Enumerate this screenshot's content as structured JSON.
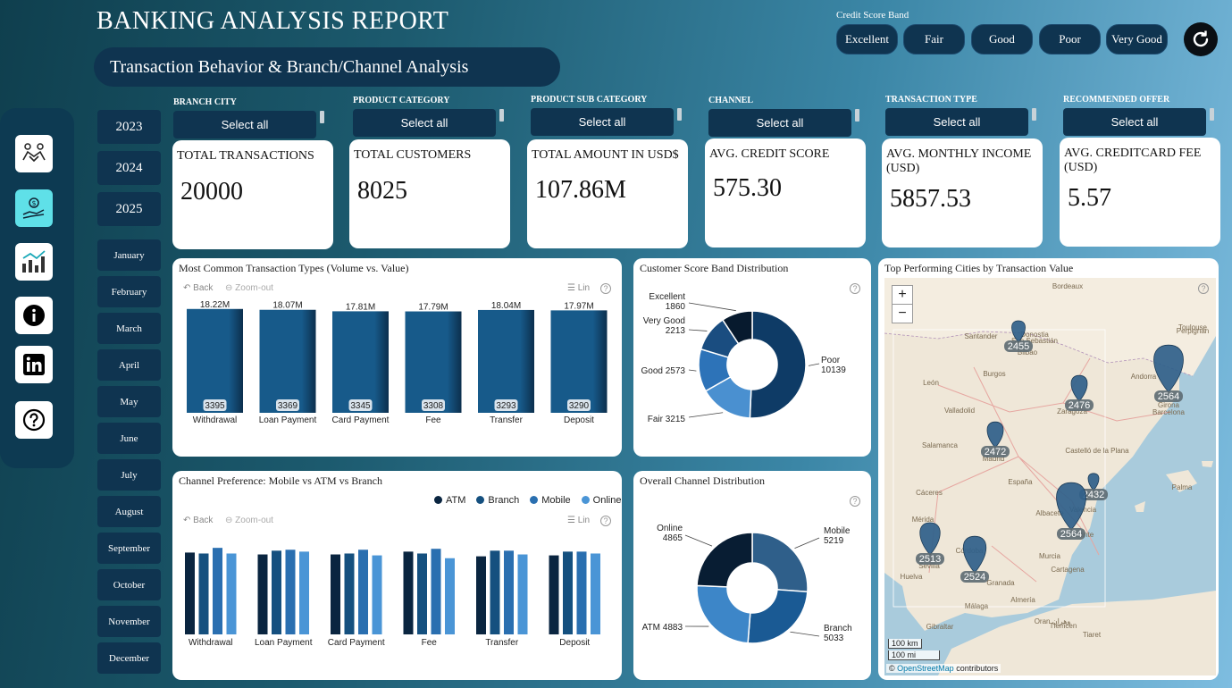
{
  "header": {
    "title": "BANKING ANALYSIS REPORT",
    "subtitle": "Transaction Behavior & Branch/Channel Analysis"
  },
  "credit_score_band": {
    "label": "Credit Score Band",
    "options": [
      "Excellent",
      "Fair",
      "Good",
      "Poor",
      "Very Good"
    ]
  },
  "sidebar": {
    "icons": [
      "handshake-icon",
      "money-hand-icon",
      "analytics-chart-icon",
      "info-icon",
      "linkedin-icon",
      "help-icon"
    ]
  },
  "years": [
    "2023",
    "2024",
    "2025"
  ],
  "months": [
    "January",
    "February",
    "March",
    "April",
    "May",
    "June",
    "July",
    "August",
    "September",
    "October",
    "November",
    "December"
  ],
  "filters": [
    {
      "label": "BRANCH CITY",
      "value": "Select all"
    },
    {
      "label": "PRODUCT CATEGORY",
      "value": "Select all"
    },
    {
      "label": "PRODUCT SUB CATEGORY",
      "value": "Select all"
    },
    {
      "label": "CHANNEL",
      "value": "Select all"
    },
    {
      "label": "TRANSACTION TYPE",
      "value": "Select all"
    },
    {
      "label": "RECOMMENDED OFFER",
      "value": "Select all"
    }
  ],
  "kpis": [
    {
      "label": "TOTAL TRANSACTIONS",
      "value": "20000"
    },
    {
      "label": "TOTAL CUSTOMERS",
      "value": "8025"
    },
    {
      "label": "TOTAL AMOUNT IN USD$",
      "value": "107.86M"
    },
    {
      "label": "AVG. CREDIT SCORE",
      "value": "575.30"
    },
    {
      "label": "AVG. MONTHLY INCOME (USD)",
      "value": "5857.53"
    },
    {
      "label": "AVG. CREDITCARD FEE (USD)",
      "value": "5.57"
    }
  ],
  "toolbar": {
    "back": "Back",
    "zoom_out": "Zoom-out",
    "lin": "Lin",
    "help": "?"
  },
  "chart_data": [
    {
      "type": "bar",
      "title": "Most Common Transaction Types (Volume vs. Value)",
      "categories": [
        "Withdrawal",
        "Loan Payment",
        "Card Payment",
        "Fee",
        "Transfer",
        "Deposit"
      ],
      "values": [
        18.22,
        18.07,
        17.81,
        17.79,
        18.04,
        17.97
      ],
      "value_labels": [
        "18.22M",
        "18.07M",
        "17.81M",
        "17.79M",
        "18.04M",
        "17.97M"
      ],
      "counts": [
        "3395",
        "3369",
        "3345",
        "3308",
        "3293",
        "3290"
      ],
      "ylim": [
        0,
        18.5
      ],
      "colors": {
        "bar": "#175a8a",
        "bar_edge": "#0c2f4d"
      }
    },
    {
      "type": "pie",
      "title": "Customer Score Band Distribution",
      "slices": [
        {
          "name": "Poor",
          "value": 10139,
          "color": "#0e3b66"
        },
        {
          "name": "Fair",
          "value": 3215,
          "color": "#4a90d0"
        },
        {
          "name": "Good",
          "value": 2573,
          "color": "#2d73b8"
        },
        {
          "name": "Very Good",
          "value": 2213,
          "color": "#1a4d80"
        },
        {
          "name": "Excellent",
          "value": 1860,
          "color": "#071a2e"
        }
      ],
      "labels": [
        {
          "line1": "Poor",
          "line2": "10139"
        },
        {
          "line1": "Fair 3215",
          "line2": ""
        },
        {
          "line1": "Good 2573",
          "line2": ""
        },
        {
          "line1": "Very Good",
          "line2": "2213"
        },
        {
          "line1": "Excellent",
          "line2": "1860"
        }
      ]
    },
    {
      "type": "bar",
      "title": "Channel Preference: Mobile vs ATM vs Branch",
      "categories": [
        "Withdrawal",
        "Loan Payment",
        "Card Payment",
        "Fee",
        "Transfer",
        "Deposit"
      ],
      "series": [
        {
          "name": "ATM",
          "color": "#0a2540",
          "values": [
            870,
            850,
            850,
            880,
            830,
            840
          ]
        },
        {
          "name": "Branch",
          "color": "#15507f",
          "values": [
            860,
            890,
            860,
            860,
            890,
            880
          ]
        },
        {
          "name": "Mobile",
          "color": "#2a6fb0",
          "values": [
            920,
            900,
            900,
            910,
            890,
            880
          ]
        },
        {
          "name": "Online",
          "color": "#4a95d6",
          "values": [
            860,
            880,
            840,
            810,
            850,
            860
          ]
        }
      ],
      "ylim": [
        0,
        950
      ]
    },
    {
      "type": "pie",
      "title": "Overall Channel Distribution",
      "slices": [
        {
          "name": "Mobile",
          "value": 5219,
          "color": "#2f5f8a"
        },
        {
          "name": "Branch",
          "value": 5033,
          "color": "#1a5a94"
        },
        {
          "name": "ATM",
          "value": 4883,
          "color": "#3d86c8"
        },
        {
          "name": "Online",
          "value": 4865,
          "color": "#081d33"
        }
      ],
      "labels": [
        {
          "line1": "Mobile",
          "line2": "5219"
        },
        {
          "line1": "Branch",
          "line2": "5033"
        },
        {
          "line1": "ATM 4883",
          "line2": ""
        },
        {
          "line1": "Online",
          "line2": "4865"
        }
      ]
    }
  ],
  "map": {
    "title": "Top Performing Cities by Transaction Value",
    "pins": [
      "2455",
      "2476",
      "2564",
      "2472",
      "2432",
      "2564",
      "2513",
      "2524"
    ],
    "places": [
      "Bordeaux",
      "Toulouse",
      "Perpignan",
      "Santander",
      "Donostia",
      "San Sebastián",
      "Bilbao",
      "León",
      "Burgos",
      "Zaragoza",
      "Andorra",
      "Girona",
      "Barcelona",
      "Valladolid",
      "Salamanca",
      "Madrid",
      "Castelló de la Plana",
      "España",
      "Valencia",
      "Palma",
      "Cáceres",
      "Albacete",
      "Mérida",
      "Córdoba",
      "Alicante",
      "Sevilla",
      "Murcia",
      "Huelva",
      "Granada",
      "Cartagena",
      "Málaga",
      "Almería",
      "Gibraltar",
      "Oran وهران",
      "Tlemcen",
      "Tiaret"
    ],
    "zoom_in": "+",
    "zoom_out": "−",
    "scale_km": "100 km",
    "scale_mi": "100 mi",
    "attribution_prefix": "©",
    "attribution_link": "OpenStreetMap",
    "attribution_suffix": "contributors"
  }
}
